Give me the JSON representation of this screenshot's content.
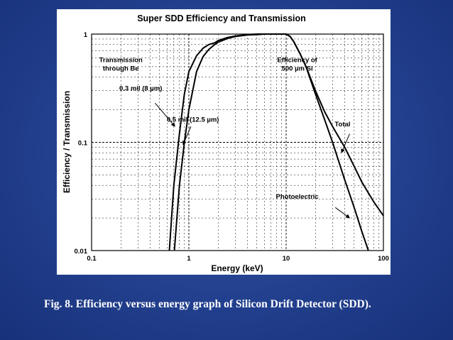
{
  "caption": "Fig. 8. Efficiency versus energy graph of Silicon Drift Detector (SDD).",
  "chart_data": {
    "type": "line",
    "title": "Super SDD Efficiency and Transmission",
    "xlabel": "Energy (keV)",
    "ylabel": "Efficiency / Transmission",
    "xscale": "log",
    "yscale": "log",
    "xlim": [
      0.1,
      100
    ],
    "ylim": [
      0.01,
      1
    ],
    "xticks": [
      "0.1",
      "1",
      "10",
      "100"
    ],
    "yticks": [
      "1",
      "0.1",
      "0.01"
    ],
    "grid": true,
    "annotations": [
      {
        "lines": [
          "Transmission",
          "through Be"
        ],
        "at": [
          0.2,
          0.55
        ]
      },
      {
        "lines": [
          "Efficiency of",
          "500 µm Si"
        ],
        "at": [
          13,
          0.55
        ]
      },
      {
        "lines": [
          "0.3 mil (8 µm)"
        ],
        "at": [
          0.32,
          0.3
        ]
      },
      {
        "lines": [
          "0.5 mil (12.5 µm)"
        ],
        "at": [
          1.1,
          0.155
        ]
      },
      {
        "lines": [
          "Total"
        ],
        "at": [
          38,
          0.14
        ]
      },
      {
        "lines": [
          "Photoelectric"
        ],
        "at": [
          13,
          0.03
        ]
      }
    ],
    "series": [
      {
        "x": [
          0.71,
          0.8,
          0.9,
          1.0,
          1.2,
          1.4,
          1.6,
          1.75,
          1.84,
          2.0,
          2.5,
          3.0,
          4.0,
          5.0,
          6.0,
          8.0,
          10.0
        ],
        "y": [
          0.01,
          0.04,
          0.1,
          0.2,
          0.45,
          0.62,
          0.72,
          0.77,
          0.8,
          0.84,
          0.91,
          0.95,
          0.98,
          0.99,
          1.0,
          1.0,
          1.0
        ]
      },
      {
        "x": [
          0.63,
          0.7,
          0.8,
          0.9,
          1.0,
          1.2,
          1.4,
          1.6,
          1.84,
          2.0,
          2.5,
          3.0,
          4.0,
          5.0,
          6.0,
          8.0,
          10.0
        ],
        "y": [
          0.01,
          0.04,
          0.12,
          0.28,
          0.45,
          0.63,
          0.74,
          0.8,
          0.83,
          0.87,
          0.93,
          0.96,
          0.99,
          1.0,
          1.0,
          1.0,
          1.0
        ]
      },
      {
        "x": [
          8,
          10,
          11,
          12,
          14,
          16,
          20,
          25,
          30,
          40,
          50,
          60,
          70,
          80,
          100
        ],
        "y": [
          1.0,
          1.0,
          0.95,
          0.85,
          0.65,
          0.5,
          0.3,
          0.19,
          0.14,
          0.09,
          0.06,
          0.043,
          0.034,
          0.028,
          0.021
        ]
      },
      {
        "x": [
          8,
          10,
          11,
          12,
          14,
          16,
          20,
          25,
          30,
          40,
          50,
          60,
          70
        ],
        "y": [
          1.0,
          1.0,
          0.95,
          0.85,
          0.65,
          0.5,
          0.28,
          0.16,
          0.1,
          0.045,
          0.025,
          0.015,
          0.01
        ]
      }
    ]
  }
}
